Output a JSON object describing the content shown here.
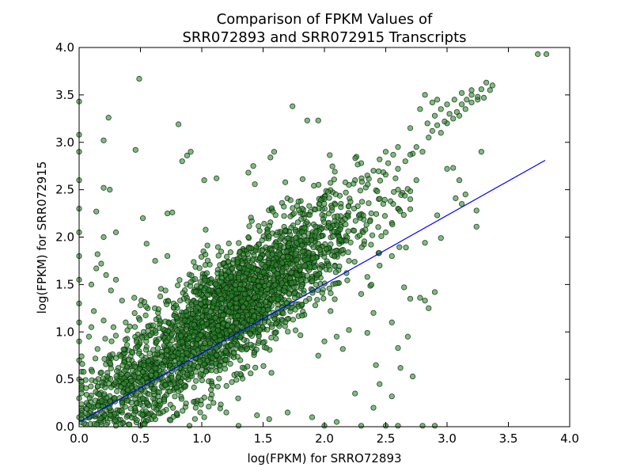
{
  "chart_data": {
    "type": "scatter",
    "title_line1": "Comparison of FPKM Values of",
    "title_line2": "SRR072893 and SRR072915 Transcripts",
    "xlabel": "log(FPKM) for SRRO72893",
    "ylabel": "log(FPKM) for SRR072915",
    "xlim": [
      0.0,
      4.0
    ],
    "ylim": [
      0.0,
      4.0
    ],
    "xticks": [
      "0.0",
      "0.5",
      "1.0",
      "1.5",
      "2.0",
      "2.5",
      "3.0",
      "3.5",
      "4.0"
    ],
    "yticks": [
      "0.0",
      "0.5",
      "1.0",
      "1.5",
      "2.0",
      "2.5",
      "3.0",
      "3.5",
      "4.0"
    ],
    "grid": false,
    "point_color": "#2e8b2e",
    "point_edge_color": "#0a2a0a",
    "point_alpha": 0.6,
    "fit_line_color": "#0000ff",
    "fit_line": {
      "x": [
        0.0,
        3.8
      ],
      "y": [
        0.05,
        2.81
      ]
    },
    "points": [
      [
        3.74,
        3.93
      ],
      [
        3.81,
        3.93
      ],
      [
        0.49,
        3.67
      ],
      [
        1.74,
        3.38
      ],
      [
        1.86,
        3.23
      ],
      [
        1.95,
        3.23
      ],
      [
        0.24,
        3.26
      ],
      [
        0.81,
        3.19
      ],
      [
        0.2,
        3.02
      ],
      [
        0.46,
        2.92
      ],
      [
        0.91,
        2.9
      ],
      [
        0.88,
        2.86
      ],
      [
        0.84,
        2.8
      ],
      [
        0.0,
        3.43
      ],
      [
        0.0,
        3.08
      ],
      [
        0.0,
        2.9
      ],
      [
        0.0,
        2.6
      ],
      [
        0.0,
        2.3
      ],
      [
        0.0,
        2.05
      ],
      [
        0.0,
        1.8
      ],
      [
        0.0,
        1.55
      ],
      [
        0.0,
        1.3
      ],
      [
        0.0,
        1.1
      ],
      [
        0.0,
        0.9
      ],
      [
        0.0,
        0.7
      ],
      [
        0.0,
        0.5
      ],
      [
        0.0,
        0.3
      ],
      [
        0.0,
        0.1
      ],
      [
        1.59,
        2.9
      ],
      [
        1.56,
        2.84
      ],
      [
        1.42,
        2.75
      ],
      [
        1.38,
        2.68
      ],
      [
        1.02,
        2.6
      ],
      [
        1.12,
        2.62
      ],
      [
        0.2,
        2.52
      ],
      [
        0.25,
        2.5
      ],
      [
        0.14,
        2.27
      ],
      [
        0.76,
        2.26
      ],
      [
        0.72,
        2.25
      ],
      [
        0.52,
        2.2
      ],
      [
        0.3,
        2.05
      ],
      [
        0.2,
        2.0
      ],
      [
        0.55,
        1.93
      ],
      [
        0.15,
        1.82
      ],
      [
        0.18,
        1.72
      ],
      [
        0.14,
        1.67
      ],
      [
        0.62,
        1.75
      ],
      [
        0.72,
        1.8
      ],
      [
        0.22,
        1.6
      ],
      [
        0.3,
        1.55
      ],
      [
        0.1,
        1.5
      ],
      [
        0.12,
        1.22
      ],
      [
        0.2,
        1.12
      ],
      [
        0.1,
        1.05
      ],
      [
        0.08,
        0.95
      ],
      [
        0.35,
        1.33
      ],
      [
        0.45,
        1.36
      ],
      [
        0.5,
        1.28
      ],
      [
        0.28,
        1.05
      ],
      [
        0.38,
        1.1
      ],
      [
        0.15,
        0.82
      ],
      [
        0.26,
        0.72
      ],
      [
        0.1,
        0.6
      ],
      [
        0.22,
        0.5
      ],
      [
        0.32,
        0.62
      ],
      [
        0.4,
        0.55
      ],
      [
        0.15,
        0.35
      ],
      [
        0.28,
        0.28
      ],
      [
        0.42,
        0.33
      ],
      [
        0.12,
        0.2
      ],
      [
        0.35,
        0.15
      ],
      [
        0.52,
        0.22
      ],
      [
        0.6,
        0.12
      ],
      [
        0.8,
        0.12
      ],
      [
        0.95,
        0.2
      ],
      [
        1.2,
        0.15
      ],
      [
        1.45,
        0.12
      ],
      [
        1.7,
        0.15
      ],
      [
        1.9,
        0.1
      ],
      [
        1.02,
        0.1
      ],
      [
        1.55,
        0.08
      ],
      [
        2.1,
        0.05
      ],
      [
        2.0,
        0.01
      ],
      [
        2.3,
        0.01
      ],
      [
        2.5,
        0.01
      ],
      [
        2.6,
        0.01
      ],
      [
        2.8,
        0.01
      ],
      [
        2.9,
        0.01
      ],
      [
        1.3,
        0.01
      ],
      [
        0.9,
        0.01
      ],
      [
        0.5,
        0.01
      ],
      [
        0.3,
        0.01
      ],
      [
        2.4,
        0.2
      ],
      [
        2.55,
        0.32
      ],
      [
        2.72,
        0.53
      ],
      [
        2.45,
        0.45
      ],
      [
        2.25,
        0.35
      ],
      [
        2.62,
        0.62
      ],
      [
        2.6,
        0.83
      ],
      [
        2.42,
        0.65
      ],
      [
        2.68,
        0.95
      ],
      [
        2.78,
        1.36
      ],
      [
        2.82,
        1.33
      ],
      [
        2.7,
        1.35
      ],
      [
        2.55,
        1.1
      ],
      [
        2.65,
        1.47
      ],
      [
        2.9,
        1.42
      ],
      [
        2.85,
        1.25
      ],
      [
        2.82,
        1.94
      ],
      [
        2.95,
        1.99
      ],
      [
        2.92,
        2.23
      ],
      [
        3.07,
        2.41
      ],
      [
        3.24,
        2.28
      ],
      [
        3.12,
        2.35
      ],
      [
        3.24,
        2.11
      ],
      [
        3.15,
        2.45
      ],
      [
        3.1,
        2.6
      ],
      [
        3.28,
        2.9
      ],
      [
        3.0,
        2.72
      ],
      [
        3.05,
        2.73
      ],
      [
        2.75,
        2.6
      ],
      [
        2.6,
        2.5
      ],
      [
        2.7,
        2.4
      ],
      [
        2.48,
        2.35
      ],
      [
        2.55,
        2.15
      ],
      [
        2.6,
        2.3
      ],
      [
        2.5,
        2.05
      ],
      [
        2.38,
        1.92
      ],
      [
        2.2,
        1.75
      ],
      [
        2.18,
        1.62
      ],
      [
        2.35,
        1.58
      ],
      [
        2.45,
        1.7
      ],
      [
        2.55,
        1.8
      ],
      [
        2.3,
        1.4
      ],
      [
        2.05,
        1.22
      ],
      [
        2.2,
        1.02
      ],
      [
        2.1,
        0.95
      ],
      [
        2.15,
        0.82
      ],
      [
        2.0,
        0.9
      ],
      [
        1.95,
        0.75
      ],
      [
        2.35,
        0.99
      ],
      [
        2.4,
        1.2
      ],
      [
        2.8,
        2.9
      ],
      [
        2.85,
        3.05
      ],
      [
        2.95,
        3.1
      ],
      [
        3.0,
        3.2
      ],
      [
        3.05,
        3.25
      ],
      [
        3.1,
        3.28
      ],
      [
        3.15,
        3.35
      ],
      [
        3.2,
        3.42
      ],
      [
        3.25,
        3.45
      ],
      [
        3.3,
        3.47
      ],
      [
        3.35,
        3.55
      ],
      [
        3.32,
        3.63
      ],
      [
        3.37,
        3.6
      ],
      [
        3.28,
        3.56
      ],
      [
        3.2,
        3.5
      ],
      [
        3.16,
        3.45
      ],
      [
        3.12,
        3.4
      ],
      [
        3.08,
        3.32
      ],
      [
        3.02,
        3.3
      ],
      [
        2.98,
        3.22
      ],
      [
        2.92,
        3.18
      ],
      [
        2.88,
        3.12
      ],
      [
        2.84,
        3.2
      ],
      [
        2.9,
        3.28
      ],
      [
        2.95,
        3.35
      ],
      [
        3.0,
        3.4
      ],
      [
        2.7,
        3.15
      ],
      [
        2.82,
        3.5
      ],
      [
        2.88,
        3.42
      ],
      [
        2.92,
        3.45
      ],
      [
        2.78,
        3.35
      ],
      [
        3.06,
        3.45
      ],
      [
        3.12,
        3.52
      ],
      [
        3.2,
        3.55
      ],
      [
        3.25,
        3.48
      ],
      [
        2.6,
        2.72
      ],
      [
        2.66,
        2.8
      ],
      [
        2.72,
        2.88
      ],
      [
        2.75,
        2.95
      ],
      [
        2.6,
        2.95
      ],
      [
        2.5,
        2.9
      ],
      [
        2.45,
        2.82
      ],
      [
        2.52,
        2.78
      ],
      [
        2.4,
        2.7
      ],
      [
        2.35,
        2.65
      ],
      [
        2.3,
        2.78
      ],
      [
        2.25,
        2.6
      ],
      [
        2.2,
        2.55
      ],
      [
        2.58,
        2.62
      ]
    ]
  }
}
